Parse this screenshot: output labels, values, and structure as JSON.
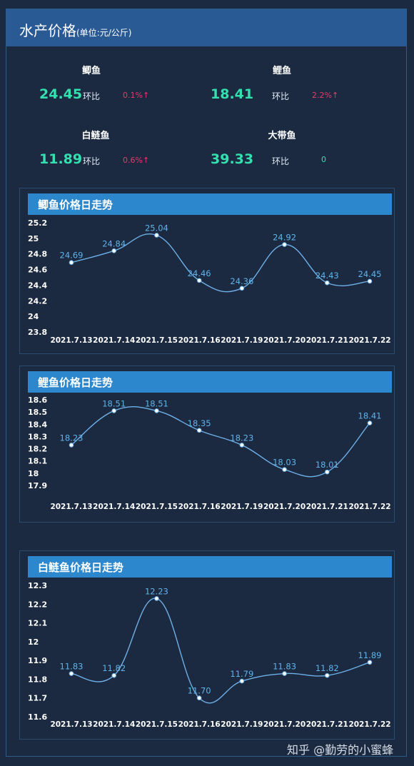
{
  "header": {
    "title": "水产价格",
    "unit": "(单位:元/公斤)"
  },
  "stats": [
    {
      "name": "鲫鱼",
      "price": "24.45",
      "ratio_label": "环比",
      "ratio": "0.1%↑"
    },
    {
      "name": "鲤鱼",
      "price": "18.41",
      "ratio_label": "环比",
      "ratio": "2.2%↑"
    },
    {
      "name": "白鲢鱼",
      "price": "11.89",
      "ratio_label": "环比",
      "ratio": "0.6%↑"
    },
    {
      "name": "大带鱼",
      "price": "39.33",
      "ratio_label": "环比",
      "ratio": "0"
    }
  ],
  "colors": {
    "up": "#e83a6b",
    "flat": "#33e1b0",
    "price": "#33e1b0",
    "line": "#6fb0e8",
    "label": "#5fb3ea"
  },
  "chart_data": [
    {
      "type": "line",
      "title": "鲫鱼价格日走势",
      "categories": [
        "2021.7.13",
        "2021.7.14",
        "2021.7.15",
        "2021.7.16",
        "2021.7.19",
        "2021.7.20",
        "2021.7.21",
        "2021.7.22"
      ],
      "values": [
        24.69,
        24.84,
        25.04,
        24.46,
        24.36,
        24.92,
        24.43,
        24.45
      ],
      "labels": [
        "24.69",
        "24.84",
        "25.04",
        "24.46",
        "24.36",
        "24.92",
        "24.43",
        "24.45"
      ],
      "yticks": [
        "25.2",
        "25",
        "24.8",
        "24.6",
        "24.4",
        "24.2",
        "24",
        "23.8"
      ],
      "ylim": [
        23.8,
        25.2
      ],
      "grid": false
    },
    {
      "type": "line",
      "title": "鲤鱼价格日走势",
      "categories": [
        "2021.7.13",
        "2021.7.14",
        "2021.7.15",
        "2021.7.16",
        "2021.7.19",
        "2021.7.20",
        "2021.7.21",
        "2021.7.22"
      ],
      "values": [
        18.23,
        18.51,
        18.51,
        18.35,
        18.23,
        18.03,
        18.01,
        18.41
      ],
      "labels": [
        "18.23",
        "18.51",
        "18.51",
        "18.35",
        "18.23",
        "18.03",
        "18.01",
        "18.41"
      ],
      "yticks": [
        "18.6",
        "18.5",
        "18.4",
        "18.3",
        "18.2",
        "18.1",
        "18",
        "17.9"
      ],
      "ylim": [
        17.9,
        18.6
      ],
      "grid": false
    },
    {
      "type": "line",
      "title": "白鲢鱼价格日走势",
      "categories": [
        "2021.7.13",
        "2021.7.14",
        "2021.7.15",
        "2021.7.16",
        "2021.7.19",
        "2021.7.20",
        "2021.7.21",
        "2021.7.22"
      ],
      "values": [
        11.83,
        11.82,
        12.23,
        11.7,
        11.79,
        11.83,
        11.82,
        11.89
      ],
      "labels": [
        "11.83",
        "11.82",
        "12.23",
        "11.70",
        "11.79",
        "11.83",
        "11.82",
        "11.89"
      ],
      "yticks": [
        "12.3",
        "12.2",
        "12.1",
        "12",
        "11.9",
        "11.8",
        "11.7",
        "11.6"
      ],
      "ylim": [
        11.6,
        12.3
      ],
      "grid": false
    }
  ],
  "watermark": "知乎 @勤劳的小蜜蜂"
}
